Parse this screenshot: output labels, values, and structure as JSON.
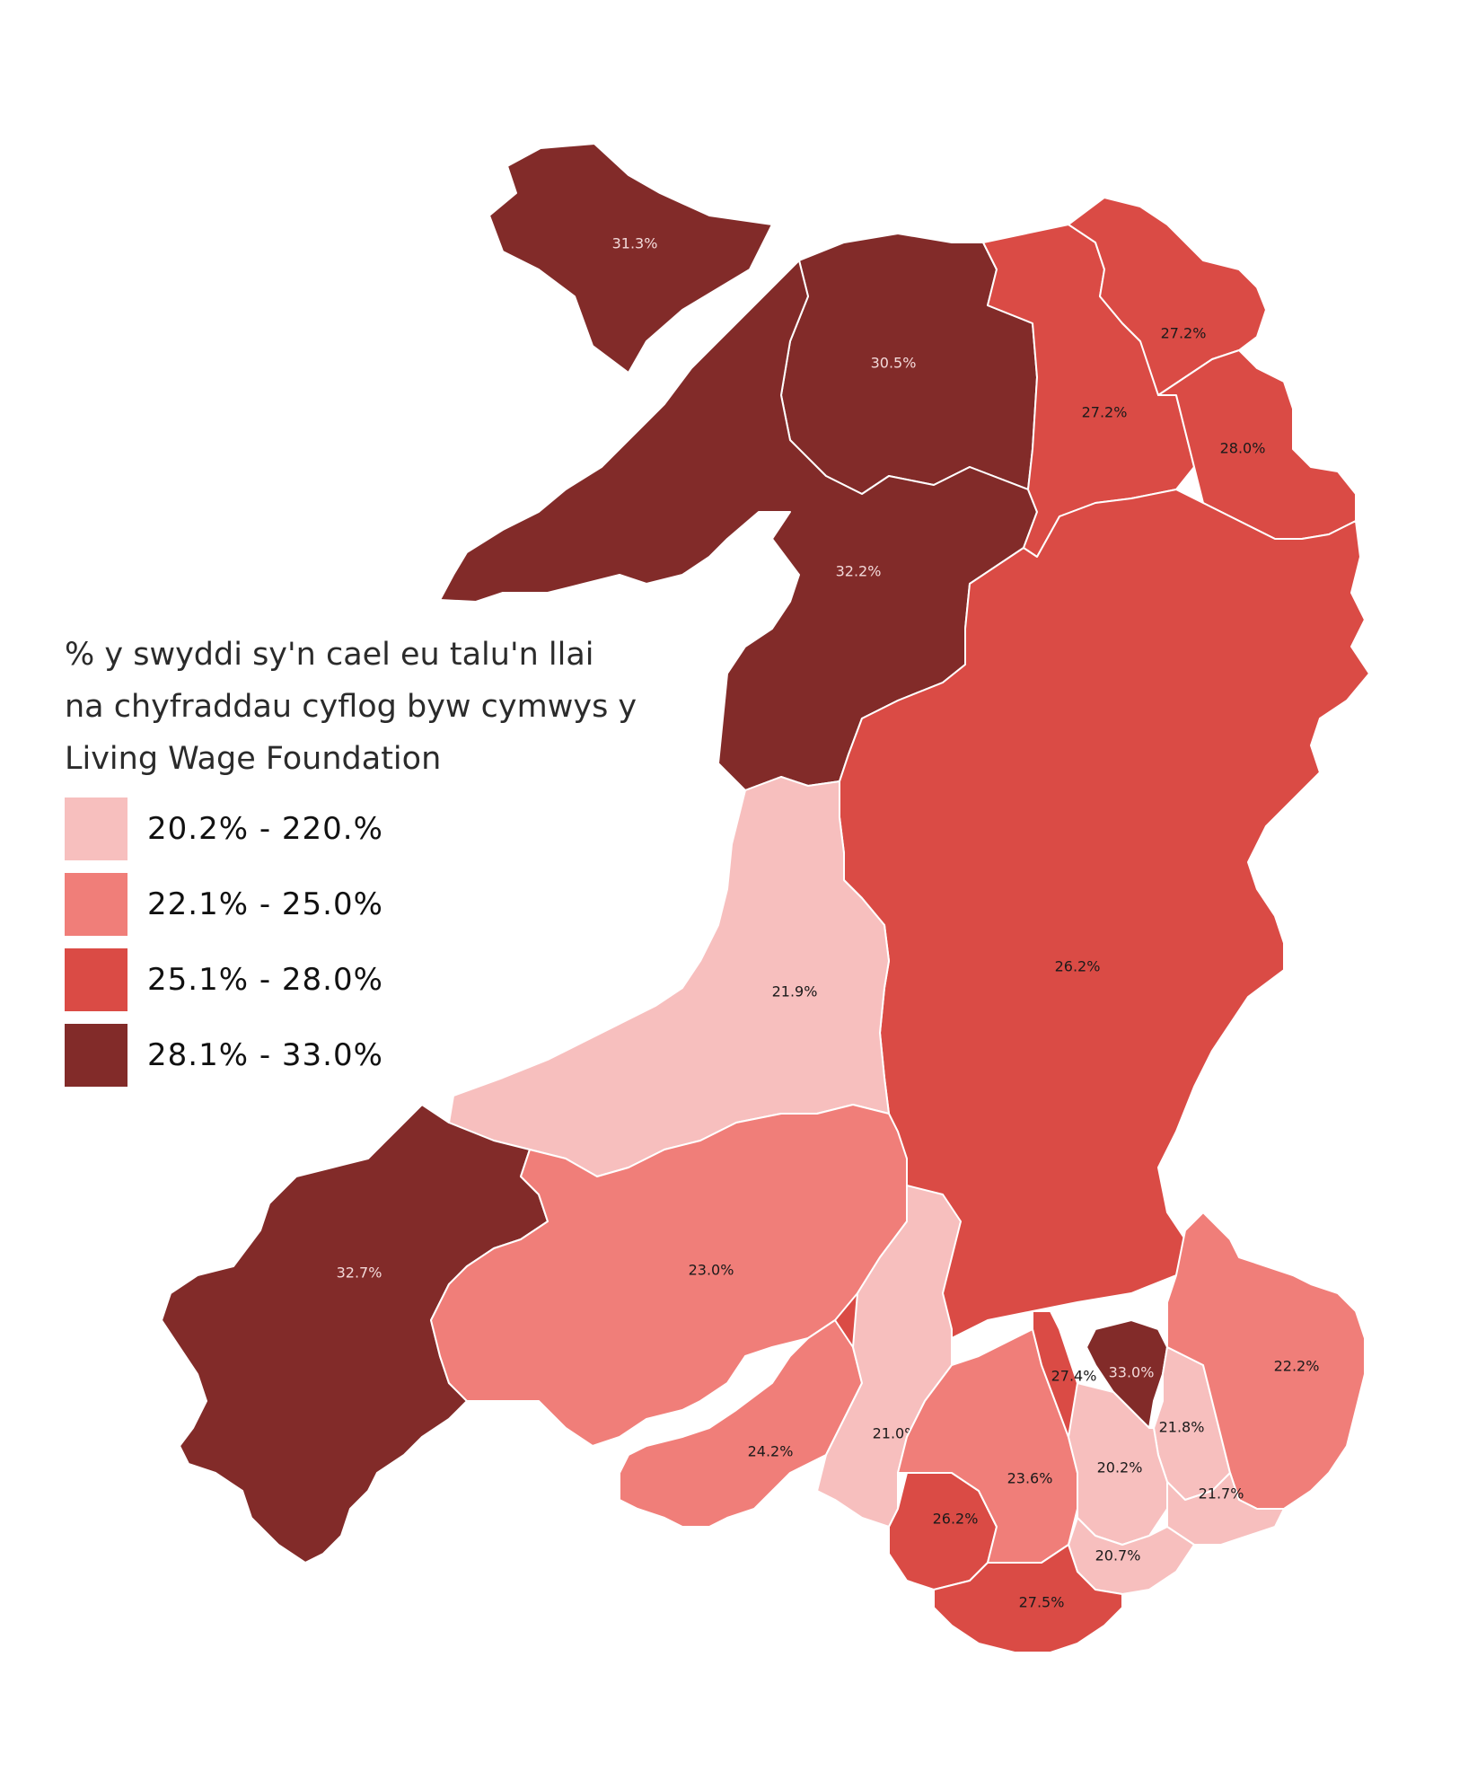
{
  "legend": {
    "title": "% y swyddi sy'n cael eu talu'n llai na chyfraddau cyflog byw cymwys y Living Wage Foundation",
    "items": [
      {
        "label": "20.2% - 220.%",
        "color": "#f7bfbe"
      },
      {
        "label": "22.1% - 25.0%",
        "color": "#f07e79"
      },
      {
        "label": "25.1% - 28.0%",
        "color": "#da4b45"
      },
      {
        "label": "28.1% - 33.0%",
        "color": "#822b29"
      }
    ]
  },
  "regions": [
    {
      "value": "31.3%",
      "class": 4
    },
    {
      "value": "30.5%",
      "class": 4
    },
    {
      "value": "32.2%",
      "class": 4
    },
    {
      "value": "27.2%",
      "class": 3
    },
    {
      "value": "27.2%",
      "class": 3
    },
    {
      "value": "28.0%",
      "class": 3
    },
    {
      "value": "26.2%",
      "class": 3
    },
    {
      "value": "21.9%",
      "class": 1
    },
    {
      "value": "32.7%",
      "class": 4
    },
    {
      "value": "23.0%",
      "class": 2
    },
    {
      "value": "24.2%",
      "class": 2
    },
    {
      "value": "21.0%",
      "class": 1
    },
    {
      "value": "26.2%",
      "class": 3
    },
    {
      "value": "23.6%",
      "class": 2
    },
    {
      "value": "27.4%",
      "class": 3
    },
    {
      "value": "33.0%",
      "class": 4
    },
    {
      "value": "21.8%",
      "class": 1
    },
    {
      "value": "22.2%",
      "class": 2
    },
    {
      "value": "20.2%",
      "class": 1
    },
    {
      "value": "21.7%",
      "class": 1
    },
    {
      "value": "20.7%",
      "class": 1
    },
    {
      "value": "27.5%",
      "class": 3
    }
  ]
}
